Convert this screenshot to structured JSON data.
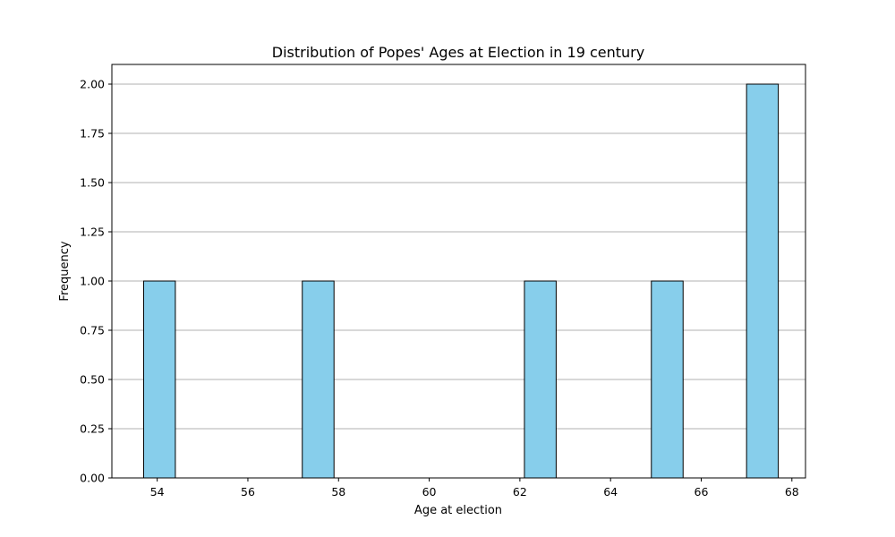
{
  "chart_data": {
    "type": "bar",
    "title": "Distribution of Popes' Ages at Election in 19 century",
    "xlabel": "Age at election",
    "ylabel": "Frequency",
    "xlim": [
      53.0,
      68.3
    ],
    "ylim": [
      0,
      2.1
    ],
    "xticks": [
      54,
      56,
      58,
      60,
      62,
      64,
      66,
      68
    ],
    "xtick_labels": [
      "54",
      "56",
      "58",
      "60",
      "62",
      "64",
      "66",
      "68"
    ],
    "yticks": [
      0,
      0.25,
      0.5,
      0.75,
      1.0,
      1.25,
      1.5,
      1.75,
      2.0
    ],
    "ytick_labels": [
      "0.00",
      "0.25",
      "0.50",
      "0.75",
      "1.00",
      "1.25",
      "1.50",
      "1.75",
      "2.00"
    ],
    "bins": [
      {
        "x0": 53.7,
        "x1": 54.4,
        "value": 1
      },
      {
        "x0": 57.2,
        "x1": 57.9,
        "value": 1
      },
      {
        "x0": 62.1,
        "x1": 62.8,
        "value": 1
      },
      {
        "x0": 64.9,
        "x1": 65.6,
        "value": 1
      },
      {
        "x0": 67.0,
        "x1": 67.7,
        "value": 2
      }
    ],
    "grid": "y",
    "colors": {
      "bar_fill": "#87ceeb",
      "bar_edge": "#000000",
      "grid": "#b0b0b0"
    }
  }
}
